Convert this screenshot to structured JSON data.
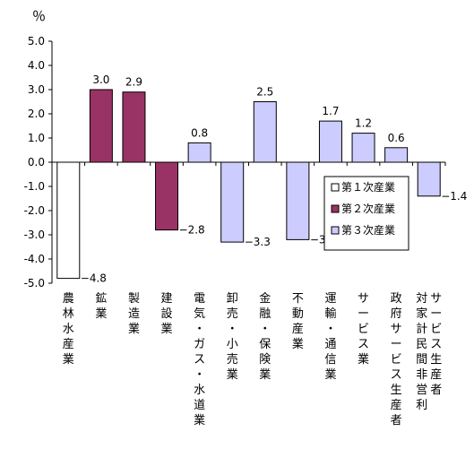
{
  "chart_data": {
    "type": "bar",
    "unit_label": "％",
    "ylim": [
      -5.0,
      5.0
    ],
    "yticks": [
      "5.0",
      "4.0",
      "3.0",
      "2.0",
      "1.0",
      "0.0",
      "-1.0",
      "-2.0",
      "-3.0",
      "-4.0",
      "-5.0"
    ],
    "ytick_values": [
      5,
      4,
      3,
      2,
      1,
      0,
      -1,
      -2,
      -3,
      -4,
      -5
    ],
    "categories": [
      "農林水産業",
      "鉱業",
      "製造業",
      "建設業",
      "電気・ガス・水道業",
      "卸売・小売業",
      "金融・保険業",
      "不動産業",
      "運輸・通信業",
      "サービス業",
      "政府サービス生産者",
      "対家計民間非営利サービス生産者"
    ],
    "category_lines": [
      [
        "農林水産業"
      ],
      [
        "鉱業"
      ],
      [
        "製造業"
      ],
      [
        "建設業"
      ],
      [
        "電気・ガス・水道業"
      ],
      [
        "卸売・小売業"
      ],
      [
        "金融・保険業"
      ],
      [
        "不動産業"
      ],
      [
        "運輸・通信業"
      ],
      [
        "サービス業"
      ],
      [
        "政府サービス生産者"
      ],
      [
        "対家計民間非営利",
        "サービス生産者"
      ]
    ],
    "values": [
      -4.8,
      3.0,
      2.9,
      -2.8,
      0.8,
      -3.3,
      2.5,
      -3.2,
      1.7,
      1.2,
      0.6,
      -1.4
    ],
    "value_labels": [
      "−4.8",
      "3.0",
      "2.9",
      "−2.8",
      "0.8",
      "−3.3",
      "2.5",
      "−3.2",
      "1.7",
      "1.2",
      "0.6",
      "−1.4"
    ],
    "groups": [
      0,
      1,
      1,
      1,
      2,
      2,
      2,
      2,
      2,
      2,
      2,
      2
    ],
    "series": [
      {
        "name": "第１次産業",
        "color": "#ffffff"
      },
      {
        "name": "第２次産業",
        "color": "#993366"
      },
      {
        "name": "第３次産業",
        "color": "#ccccff"
      }
    ],
    "legend_position": "right",
    "grid": false
  }
}
